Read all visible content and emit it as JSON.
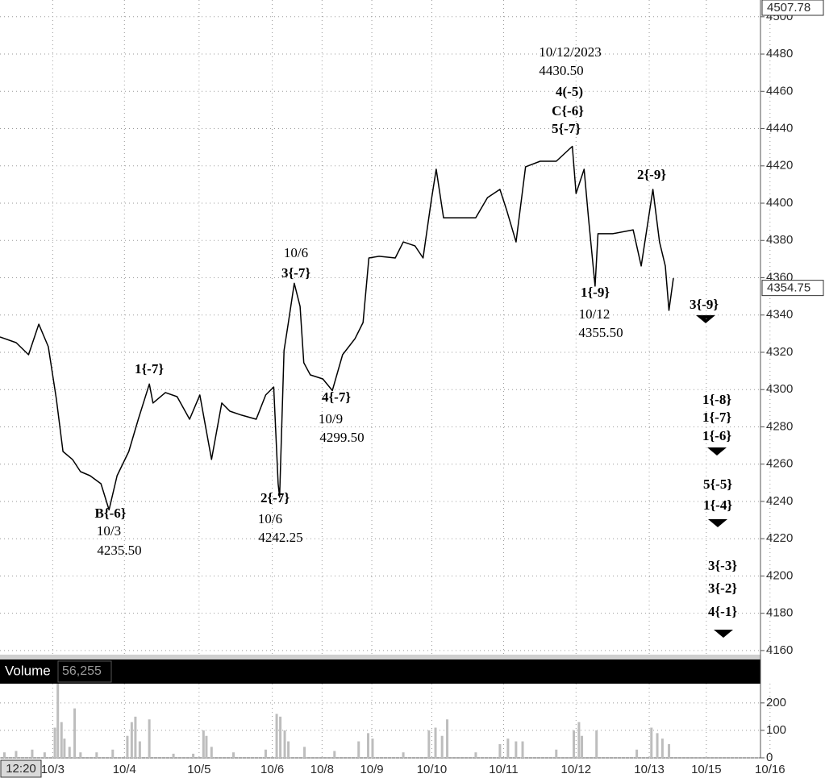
{
  "chart_data": [
    {
      "type": "line",
      "color": "#000000",
      "x": [
        0,
        0.22,
        0.39,
        0.53,
        0.66,
        0.77,
        0.86,
        0.99,
        1.1,
        1.23,
        1.38,
        1.49,
        1.6,
        1.76,
        1.89,
        2.04,
        2.09,
        2.26,
        2.42,
        2.59,
        2.73,
        2.89,
        3.03,
        3.14,
        3.3,
        3.5,
        3.63,
        3.74,
        3.8,
        3.82,
        3.88,
        3.94,
        4.02,
        4.1,
        4.15,
        4.24,
        4.41,
        4.54,
        4.68,
        4.85,
        4.96,
        5.04,
        5.18,
        5.4,
        5.51,
        5.67,
        5.78,
        5.89,
        5.96,
        6.06,
        6.28,
        6.5,
        6.66,
        6.83,
        6.92,
        7.05,
        7.18,
        7.38,
        7.6,
        7.82,
        7.87,
        7.98,
        8.04,
        8.13,
        8.17,
        8.37,
        8.65,
        8.76,
        8.92,
        9.01,
        9.09,
        9.14,
        9.2
      ],
      "values": [
        4328.2,
        4325.2,
        4318.7,
        4335.1,
        4323.0,
        4294.9,
        4266.8,
        4262.5,
        4256.0,
        4253.8,
        4249.5,
        4235.5,
        4253.8,
        4266.8,
        4284.1,
        4303,
        4292.8,
        4298.4,
        4296.2,
        4284.1,
        4297.1,
        4262.5,
        4292.8,
        4288.4,
        4286.3,
        4284.1,
        4297.1,
        4301.4,
        4249.5,
        4242.25,
        4320.9,
        4336,
        4357,
        4344.6,
        4314.4,
        4307.9,
        4305.7,
        4299.5,
        4318.7,
        4327.3,
        4336,
        4370.6,
        4371.5,
        4370.6,
        4379.2,
        4377.1,
        4370.6,
        4400.9,
        4418.2,
        4392.2,
        4392.2,
        4392.2,
        4403,
        4407.4,
        4396.5,
        4379.2,
        4419.5,
        4422.5,
        4422.5,
        4430.5,
        4405.2,
        4418.2,
        4392.2,
        4355.5,
        4383.6,
        4383.6,
        4385.7,
        4366.3,
        4407.4,
        4379.2,
        4366.3,
        4342.5,
        4359.8
      ],
      "xlim": [
        0,
        10.39
      ],
      "ylim": [
        4157.8,
        4509.0
      ],
      "yticks": [
        4160,
        4180,
        4200,
        4220,
        4240,
        4260,
        4280,
        4300,
        4320,
        4340,
        4360,
        4380,
        4400,
        4420,
        4440,
        4460,
        4480,
        4500
      ],
      "xticks": [
        {
          "value": 0.72,
          "label": "10/3"
        },
        {
          "value": 1.7,
          "label": "10/4"
        },
        {
          "value": 2.72,
          "label": "10/5"
        },
        {
          "value": 3.72,
          "label": "10/6"
        },
        {
          "value": 4.4,
          "label": "10/8"
        },
        {
          "value": 5.08,
          "label": "10/9"
        },
        {
          "value": 5.9,
          "label": "10/10"
        },
        {
          "value": 6.88,
          "label": "10/11"
        },
        {
          "value": 7.87,
          "label": "10/12"
        },
        {
          "value": 8.87,
          "label": "10/13"
        },
        {
          "value": 9.65,
          "label": "10/15"
        },
        {
          "value": 10.52,
          "label": "10/16"
        }
      ],
      "grid": true,
      "price_labels": [
        4507.78,
        4354.75
      ],
      "cursor_time": "12:20"
    },
    {
      "type": "bar",
      "title": "Volume",
      "color": "#bdbdbd",
      "last_value": {
        "value": 56255,
        "label": "56,255"
      },
      "x": [
        0.06,
        0.22,
        0.44,
        0.61,
        0.75,
        0.79,
        0.84,
        0.88,
        0.95,
        1.02,
        1.1,
        1.32,
        1.54,
        1.74,
        1.8,
        1.85,
        1.91,
        2.04,
        2.37,
        2.64,
        2.78,
        2.82,
        2.89,
        3.19,
        3.63,
        3.78,
        3.83,
        3.89,
        3.94,
        4.16,
        4.57,
        4.9,
        5.03,
        5.09,
        5.51,
        5.86,
        5.95,
        6.04,
        6.11,
        6.5,
        6.83,
        6.94,
        7.05,
        7.14,
        7.6,
        7.84,
        7.91,
        7.95,
        8.15,
        8.7,
        8.9,
        8.98,
        9.05,
        9.14
      ],
      "values": [
        20,
        25,
        30,
        20,
        110,
        270,
        130,
        70,
        40,
        180,
        20,
        20,
        30,
        80,
        130,
        150,
        60,
        140,
        15,
        15,
        100,
        80,
        40,
        20,
        30,
        160,
        150,
        100,
        60,
        40,
        25,
        60,
        90,
        70,
        20,
        100,
        110,
        80,
        140,
        20,
        50,
        70,
        60,
        60,
        30,
        100,
        130,
        80,
        100,
        30,
        110,
        90,
        70,
        50
      ],
      "ylim": [
        0,
        270
      ],
      "yticks": [
        0,
        100,
        200
      ]
    }
  ],
  "annotations": [
    "10/12/2023",
    "4430.50",
    "4(-5)",
    "C{-6}",
    "5{-7}",
    "2{-9}",
    "10/6",
    "3{-7}",
    "1{-7}",
    "4{-7}",
    "10/9",
    "4299.50",
    "1{-9}",
    "10/12",
    "4355.50",
    "3{-9}",
    "1{-8}",
    "1{-7}",
    "1{-6}",
    "5{-5}",
    "1{-4}",
    "3{-3}",
    "3{-2}",
    "4{-1}",
    "B{-6}",
    "10/3",
    "4235.50",
    "2{-7}",
    "10/6",
    "4242.25"
  ]
}
